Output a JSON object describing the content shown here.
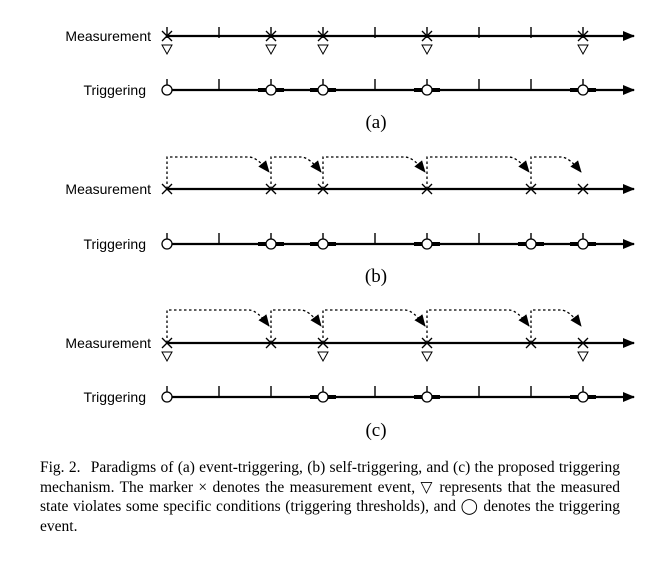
{
  "panels": [
    {
      "id": "a",
      "sublabel": "(a)",
      "measurement_label": "Measurement",
      "triggering_label": "Triggering",
      "measurement_ticks": [
        0,
        1,
        2,
        3,
        4,
        5,
        6,
        7,
        8
      ],
      "measurement_x": [
        0,
        2,
        3,
        5,
        8
      ],
      "violations": [
        0,
        2,
        3,
        5,
        8
      ],
      "trigger_plain_ticks": [
        1,
        4,
        6,
        7
      ],
      "trigger_circles": [
        0,
        2,
        3,
        5,
        8
      ],
      "trigger_bars": [
        2,
        3,
        5,
        8
      ],
      "arrows": []
    },
    {
      "id": "b",
      "sublabel": "(b)",
      "measurement_label": "Measurement",
      "triggering_label": "Triggering",
      "measurement_ticks": [],
      "measurement_x": [
        0,
        2,
        3,
        5,
        7,
        8
      ],
      "violations": [],
      "trigger_plain_ticks": [
        1,
        4,
        6
      ],
      "trigger_circles": [
        0,
        2,
        3,
        5,
        7,
        8
      ],
      "trigger_bars": [
        2,
        3,
        5,
        7,
        8
      ],
      "arrows": [
        [
          0,
          2
        ],
        [
          2,
          3
        ],
        [
          3,
          5
        ],
        [
          5,
          7
        ],
        [
          7,
          8
        ]
      ]
    },
    {
      "id": "c",
      "sublabel": "(c)",
      "measurement_label": "Measurement",
      "triggering_label": "Triggering",
      "measurement_ticks": [],
      "measurement_x": [
        0,
        2,
        3,
        5,
        7,
        8
      ],
      "violations": [
        0,
        3,
        5,
        8
      ],
      "trigger_plain_ticks": [
        1,
        2,
        4,
        6,
        7
      ],
      "trigger_circles": [
        0,
        3,
        5,
        8
      ],
      "trigger_bars": [
        3,
        5,
        8
      ],
      "arrows": [
        [
          0,
          2
        ],
        [
          2,
          3
        ],
        [
          3,
          5
        ],
        [
          5,
          7
        ],
        [
          7,
          8
        ]
      ]
    }
  ],
  "caption": {
    "number": "Fig. 2.",
    "text": "Paradigms of (a) event-triggering, (b) self-triggering, and (c) the proposed triggering mechanism. The marker × denotes the measurement event, ▽ represents that the measured state violates some specific conditions (triggering thresholds), and ◯ denotes the triggering event."
  }
}
